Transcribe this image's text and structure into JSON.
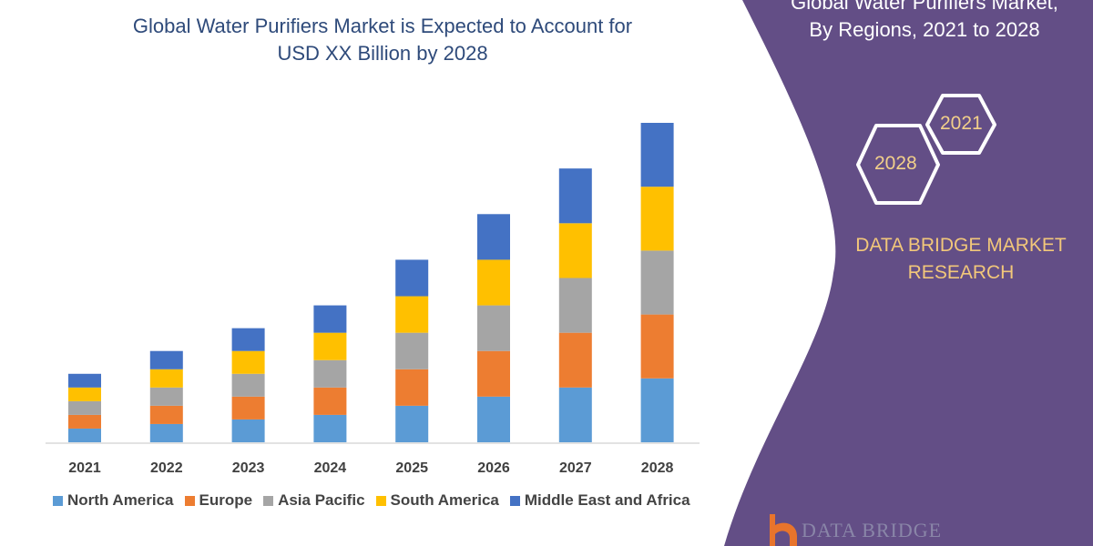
{
  "header": {
    "title_line1": "Global Water Purifiers Market is Expected to Account for",
    "title_line2": "USD XX Billion by 2028"
  },
  "panel": {
    "title_line1": "Global Water Purifiers Market,",
    "title_line2": "By Regions, 2021 to 2028",
    "hex_start": "2021",
    "hex_end": "2028",
    "brand_line1": "DATA BRIDGE MARKET",
    "brand_line2": "RESEARCH",
    "logo_text": "DATA BRIDGE",
    "color": "#634E86"
  },
  "chart_data": {
    "type": "bar",
    "stacked": true,
    "title": "Global Water Purifiers Market is Expected to Account for USD XX Billion by 2028",
    "categories": [
      "2021",
      "2022",
      "2023",
      "2024",
      "2025",
      "2026",
      "2027",
      "2028"
    ],
    "series": [
      {
        "name": "North America",
        "color": "#5B9BD5",
        "values": [
          1.5,
          2,
          2.5,
          3,
          4,
          5,
          6,
          7
        ]
      },
      {
        "name": "Europe",
        "color": "#ED7D31",
        "values": [
          1.5,
          2,
          2.5,
          3,
          4,
          5,
          6,
          7
        ]
      },
      {
        "name": "Asia Pacific",
        "color": "#A5A5A5",
        "values": [
          1.5,
          2,
          2.5,
          3,
          4,
          5,
          6,
          7
        ]
      },
      {
        "name": "South America",
        "color": "#FFC000",
        "values": [
          1.5,
          2,
          2.5,
          3,
          4,
          5,
          6,
          7
        ]
      },
      {
        "name": "Middle East and Africa",
        "color": "#4472C4",
        "values": [
          1.5,
          2,
          2.5,
          3,
          4,
          5,
          6,
          7
        ]
      }
    ],
    "xlabel": "",
    "ylabel": "",
    "ylim": [
      0,
      35
    ],
    "grid": false,
    "legend": "bottom",
    "y_axis_shown": false
  }
}
